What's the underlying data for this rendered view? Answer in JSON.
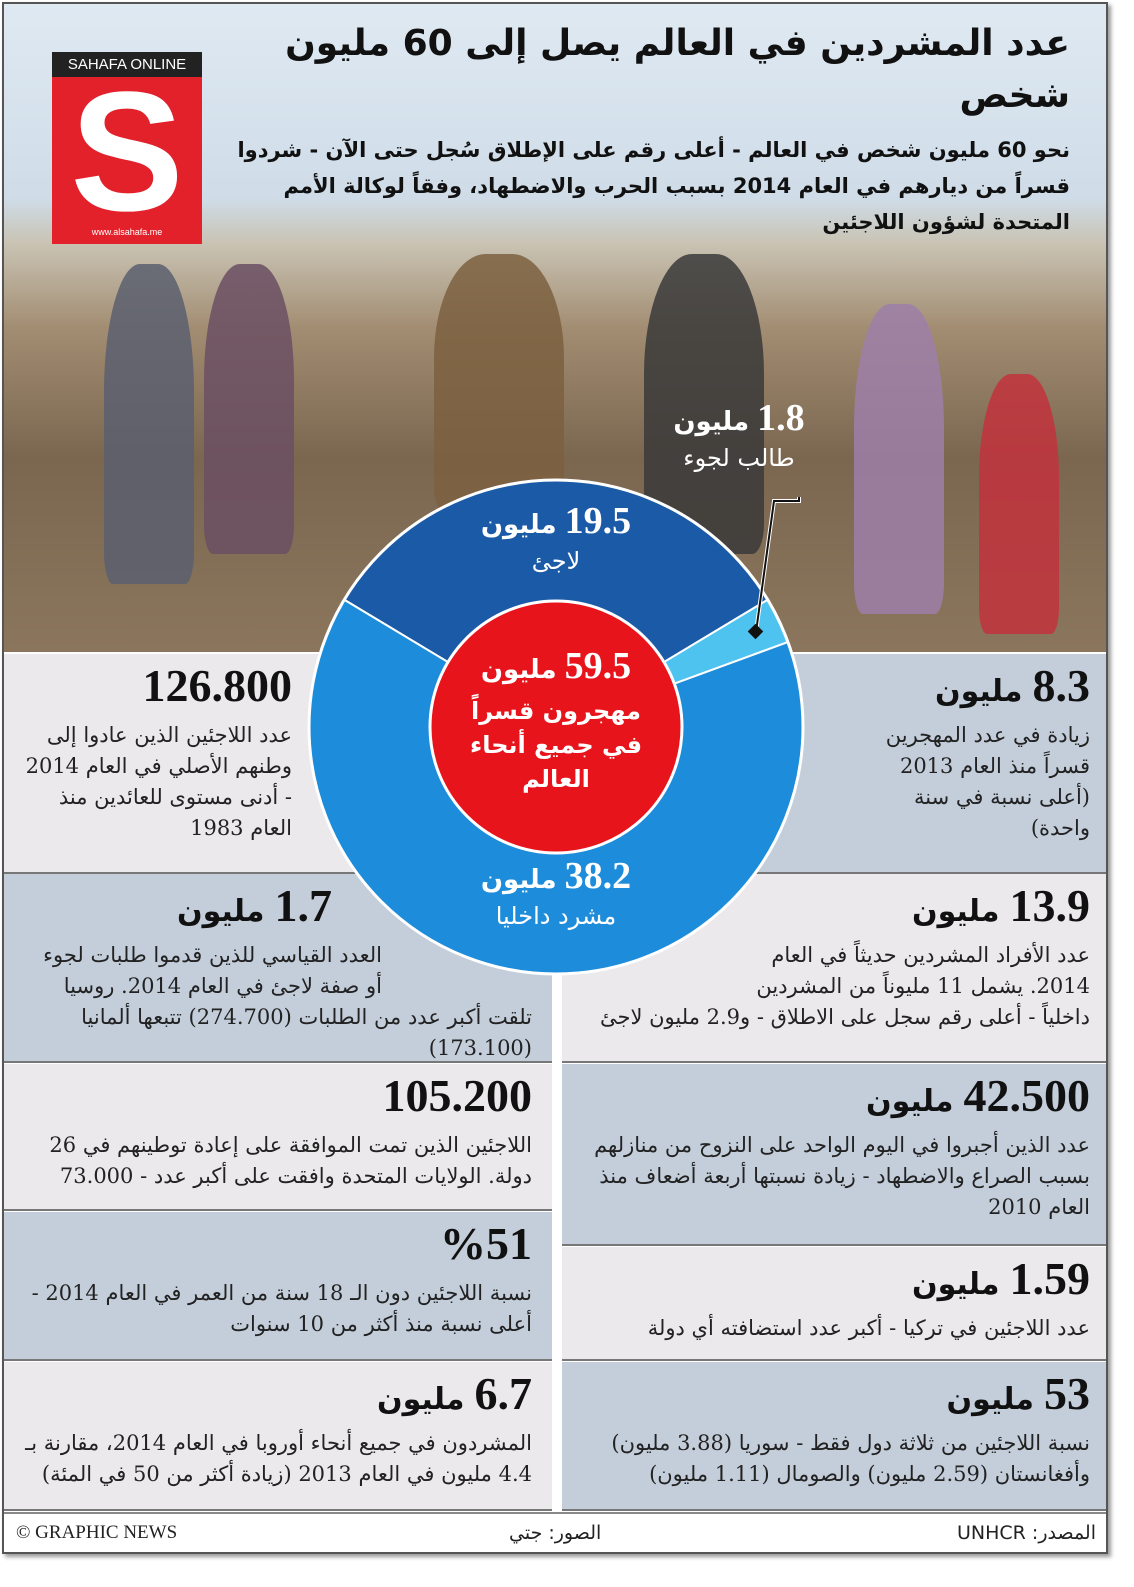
{
  "header": {
    "title": "عدد المشردين في العالم يصل إلى 60 مليون شخص",
    "subtitle": "نحو 60 مليون شخص في العالم - أعلى رقم على الإطلاق سُجل حتى الآن - شردوا قسراً من ديارهم في العام 2014 بسبب الحرب والاضطهاد، وفقاً لوكالة الأمم المتحدة لشؤون اللاجئين"
  },
  "logo": {
    "brand": "SAHAFA ONLINE",
    "letter": "S",
    "url": "www.alsahafa.me",
    "color": "#e3212b"
  },
  "chart_data": {
    "type": "pie",
    "variant": "donut",
    "total": {
      "value": "59.5",
      "unit": "مليون",
      "label": "مهجرون قسراً في جميع أنحاء العالم"
    },
    "segments": [
      {
        "name": "لاجئ",
        "value": 19.5,
        "label": "19.5",
        "unit": "مليون",
        "color": "#1b5aa6"
      },
      {
        "name": "طالب لجوء",
        "value": 1.8,
        "label": "1.8",
        "unit": "مليون",
        "color": "#4fc3f0"
      },
      {
        "name": "مشرد داخليا",
        "value": 38.2,
        "label": "38.2",
        "unit": "مليون",
        "color": "#1d8ddb"
      }
    ],
    "center_color": "#e8141c"
  },
  "left_cards": [
    {
      "value": "126.800",
      "unit": "",
      "text": "عدد اللاجئين الذين عادوا إلى وطنهم الأصلي في العام 2014 - أدنى مستوى للعائدين منذ العام 1983"
    },
    {
      "value": "1.7",
      "unit": "مليون",
      "text": "العدد القياسي للذين قدموا طلبات لجوء أو صفة لاجئ في العام 2014. روسيا تلقت أكبر عدد من الطلبات (274.700) تتبعها ألمانيا (173.100)"
    },
    {
      "value": "105.200",
      "unit": "",
      "text": "اللاجئين الذين تمت الموافقة على إعادة توطينهم في 26 دولة. الولايات المتحدة وافقت على أكبر عدد - 73.000"
    },
    {
      "value": "%51",
      "unit": "",
      "text": "نسبة اللاجئين دون الـ 18 سنة من العمر في العام 2014 - أعلى نسبة منذ أكثر من 10 سنوات"
    },
    {
      "value": "6.7",
      "unit": "مليون",
      "text": "المشردون في جميع أنحاء أوروبا في العام 2014، مقارنة بـ 4.4 مليون في العام 2013 (زيادة أكثر من 50 في المئة)"
    }
  ],
  "right_cards": [
    {
      "value": "8.3",
      "unit": "مليون",
      "text": "زيادة في عدد المهجرين قسراً منذ العام 2013 (أعلى نسبة في سنة واحدة)"
    },
    {
      "value": "13.9",
      "unit": "مليون",
      "text": "عدد الأفراد المشردين حديثاً في العام 2014. يشمل 11 مليوناً من المشردين داخلياً - أعلى رقم سجل على الاطلاق - و2.9 مليون لاجئ"
    },
    {
      "value": "42.500",
      "unit": "مليون",
      "text": "عدد الذين أجبروا في اليوم الواحد على النزوح من منازلهم بسبب الصراع والاضطهاد - زيادة نسبتها أربعة أضعاف منذ العام 2010"
    },
    {
      "value": "1.59",
      "unit": "مليون",
      "text": "عدد اللاجئين في تركيا - أكبر عدد استضافته أي دولة"
    },
    {
      "value": "53",
      "unit": "مليون",
      "text": "نسبة اللاجئين من ثلاثة دول فقط - سوريا (3.88 مليون) وأفغانستان (2.59 مليون) والصومال (1.11 مليون)"
    }
  ],
  "footer": {
    "copyright": "© GRAPHIC NEWS",
    "photos": "الصور: جتي",
    "source": "المصدر: UNHCR"
  }
}
